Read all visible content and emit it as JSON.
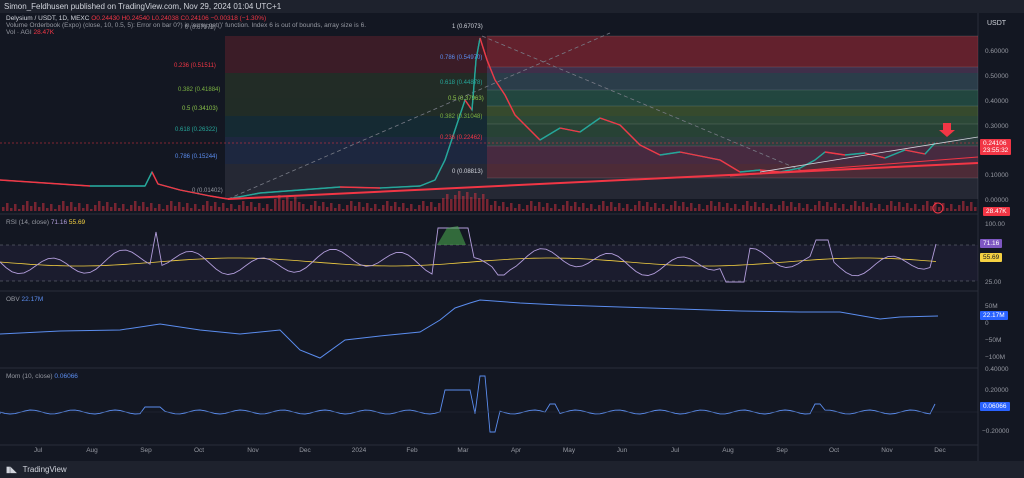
{
  "header": {
    "text": "Simon_Feldhusen published on TradingView.com, Nov 29, 2024 01:04 UTC+1"
  },
  "legend": {
    "symbol": "Delysium / USDT, 1D, MEXC",
    "ohlc": "O0.24430 H0.24540 L0.24038 C0.24106 −0.00318 (−1.30%)",
    "vrvp": "Volume Orderbook (Expo) (close, 10, 0.5, 5): Error on bar 0?) in 'array.get()' function. Index 6 is out of bounds, array size is 6.",
    "vol_label": "Vol · AGI",
    "vol_value": "28.47K"
  },
  "price_axis": {
    "unit": "USDT",
    "ticks": [
      "0.60000",
      "0.50000",
      "0.40000",
      "0.30000",
      "0.10000",
      "0.00000"
    ],
    "last_price": "0.24106",
    "countdown": "23:55:32",
    "volume_tag": "28.47K"
  },
  "fib_left": [
    {
      "label": "0.236 (0.51511)",
      "color": "#f23645"
    },
    {
      "label": "0.382 (0.41884)",
      "color": "#7cb342"
    },
    {
      "label": "0.5 (0.34103)",
      "color": "#8bc34a"
    },
    {
      "label": "0.618 (0.26322)",
      "color": "#26a69a"
    },
    {
      "label": "0.786 (0.15244)",
      "color": "#5b8def"
    },
    {
      "label": "0 (0.01402)",
      "color": "#9598a1"
    },
    {
      "label": "0 (0.67073)",
      "color": "#9598a1"
    }
  ],
  "fib_right": [
    {
      "label": "1 (0.67073)",
      "color": "#d1d4dc"
    },
    {
      "label": "0.786 (0.54970)",
      "color": "#5b8def"
    },
    {
      "label": "0.618 (0.44878)",
      "color": "#26a69a"
    },
    {
      "label": "0.5 (0.37963)",
      "color": "#8bc34a"
    },
    {
      "label": "0.382 (0.31048)",
      "color": "#7cb342"
    },
    {
      "label": "0.236 (0.22462)",
      "color": "#f23645"
    },
    {
      "label": "0 (0.08813)",
      "color": "#d1d4dc"
    }
  ],
  "rsi": {
    "label": "RSI (14, close)",
    "value": "71.16",
    "ma_value": "55.69",
    "ticks": [
      "100.00",
      "25.00"
    ],
    "tag_value": "71.16",
    "tag_ma": "55.69"
  },
  "obv": {
    "label": "OBV",
    "value": "22.17M",
    "ticks": [
      "50M",
      "0",
      "−50M",
      "−100M"
    ],
    "tag_value": "22.17M"
  },
  "mom": {
    "label": "Mom (10, close)",
    "value": "0.06066",
    "ticks": [
      "0.40000",
      "0.20000",
      "−0.20000"
    ],
    "tag_value": "0.06066"
  },
  "time_axis": [
    "Jul",
    "Aug",
    "Sep",
    "Oct",
    "Nov",
    "Dec",
    "2024",
    "Feb",
    "Mar",
    "Apr",
    "May",
    "Jun",
    "Jul",
    "Aug",
    "Sep",
    "Oct",
    "Nov",
    "Dec"
  ],
  "footer": {
    "brand": "TradingView"
  },
  "colors": {
    "background": "#131722",
    "up": "#26a69a",
    "down": "#f23645",
    "rsi_line": "#b29ddb",
    "obv_line": "#5b8def",
    "trend_line": "#f23645"
  }
}
